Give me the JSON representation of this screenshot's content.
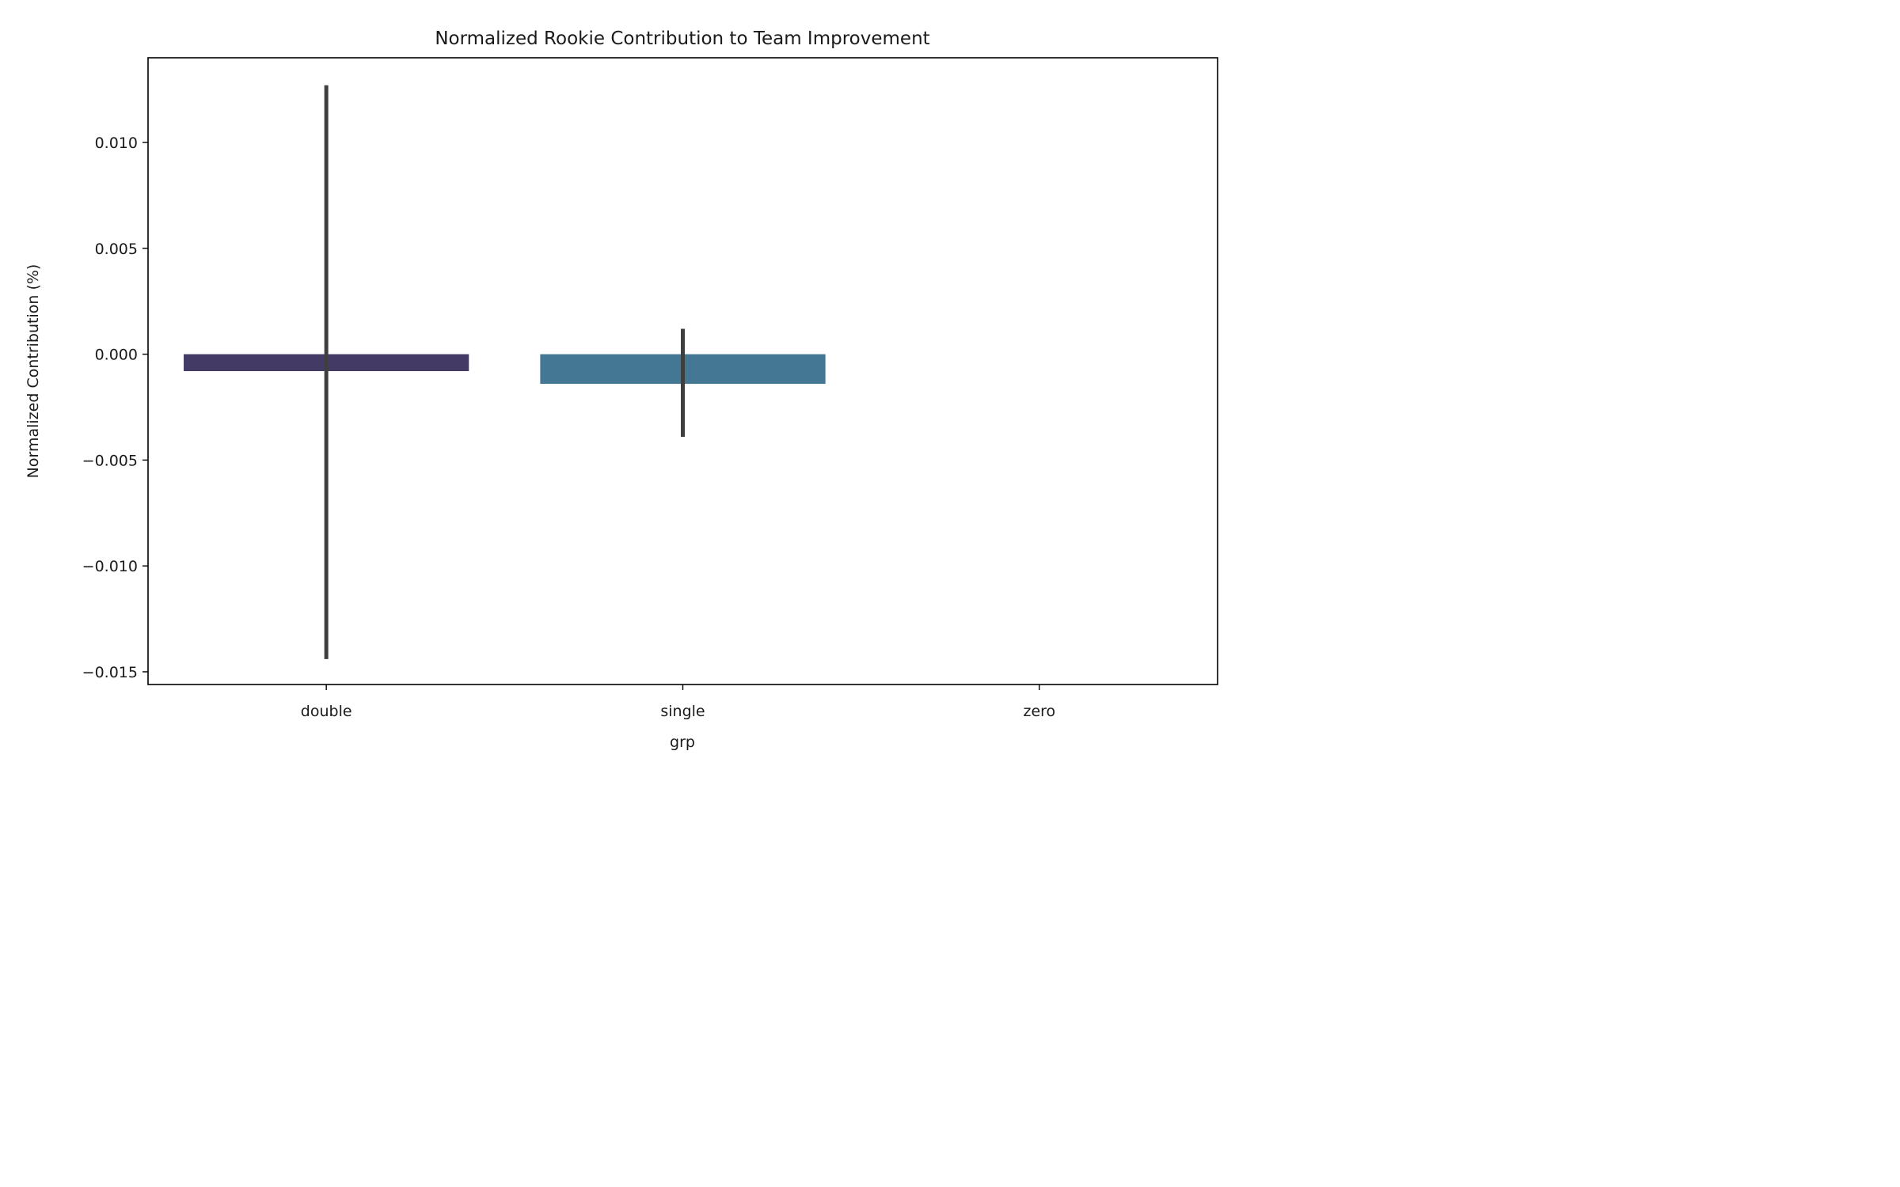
{
  "chart_data": {
    "type": "bar",
    "title": "Normalized Rookie Contribution to Team Improvement",
    "xlabel": "grp",
    "ylabel": "Normalized Contribution (%)",
    "categories": [
      "double",
      "single",
      "zero"
    ],
    "values": [
      -0.0008,
      -0.0014,
      0.0
    ],
    "error_bars": [
      {
        "category": "double",
        "low": -0.0144,
        "high": 0.0127
      },
      {
        "category": "single",
        "low": -0.0039,
        "high": 0.0012
      },
      null
    ],
    "bar_colors": [
      "#433a65",
      "#447794",
      null
    ],
    "errorbar_color": "#3f3f3f",
    "ylim": [
      -0.0156,
      0.014
    ],
    "yticks": [
      0.01,
      0.005,
      0.0,
      -0.005,
      -0.01,
      -0.015
    ],
    "ytick_labels": [
      "0.010",
      "0.005",
      "0.000",
      "−0.005",
      "−0.010",
      "−0.015"
    ],
    "grid": false
  }
}
